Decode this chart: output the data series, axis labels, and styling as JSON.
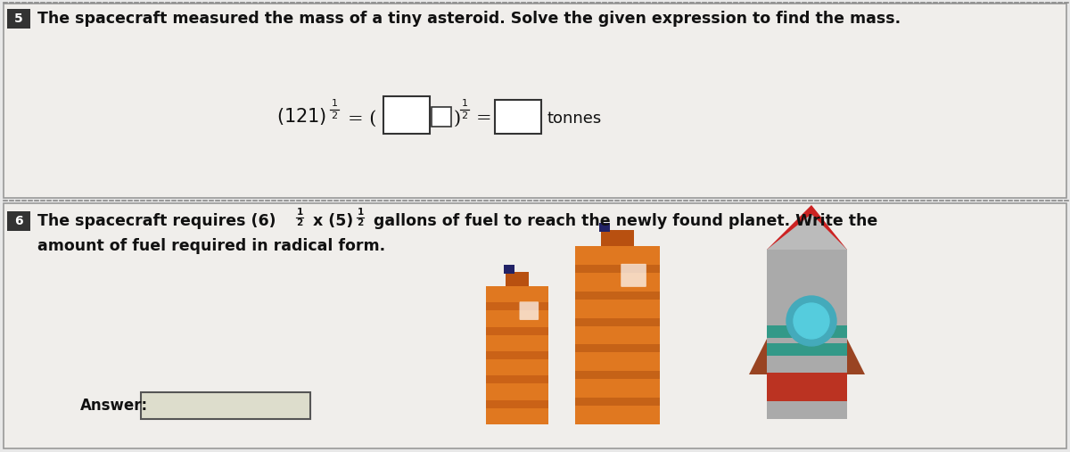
{
  "bg_color": "#e8e8e8",
  "top_section_bg": "#f0eeeb",
  "bottom_section_bg": "#f0eeeb",
  "border_color": "#999999",
  "dot_color": "#888888",
  "num5_bg": "#333333",
  "num6_bg": "#333333",
  "num_text_color": "#ffffff",
  "main_text_color": "#111111",
  "question5_text": "The spacecraft measured the mass of a tiny asteroid. Solve the given expression to find the mass.",
  "question6_text3": " gallons of fuel to reach the newly found planet. Write the",
  "question6_text4": "amount of fuel required in radical form.",
  "answer_label": "Answer:",
  "figsize": [
    12.0,
    5.07
  ],
  "dpi": 100
}
